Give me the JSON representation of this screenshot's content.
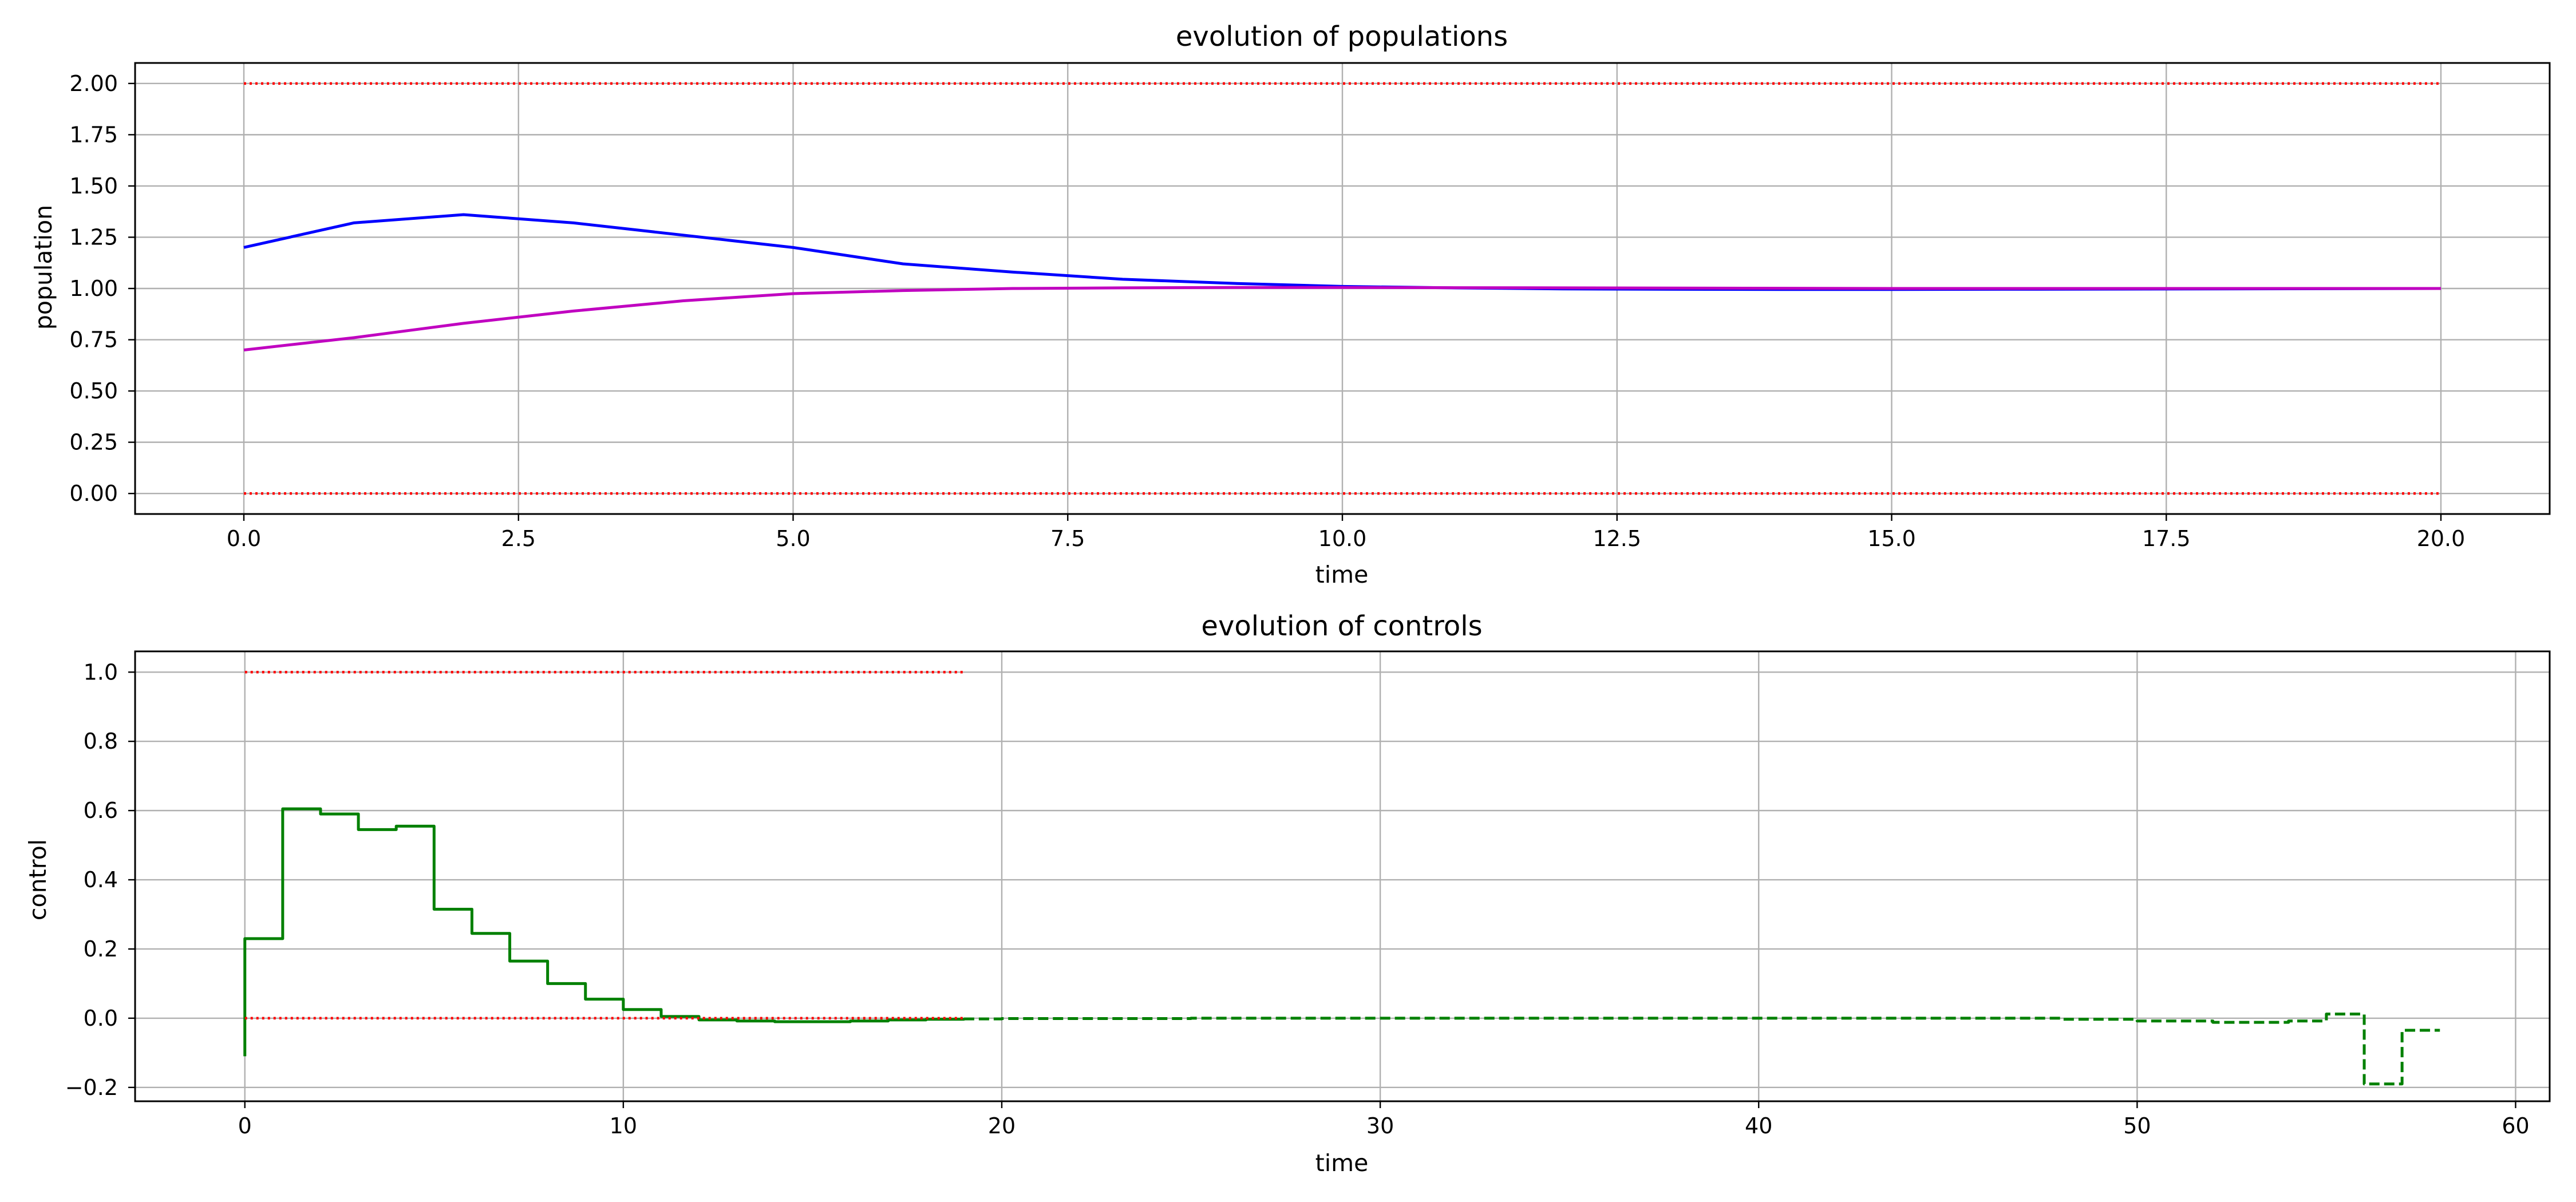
{
  "chart_data": [
    {
      "type": "line",
      "title": "evolution of populations",
      "xlabel": "time",
      "ylabel": "population",
      "xlim": [
        -0.99,
        20.99
      ],
      "ylim": [
        -0.1,
        2.1
      ],
      "grid": true,
      "xticks": [
        0,
        2.5,
        5,
        7.5,
        10,
        12.5,
        15,
        17.5,
        20
      ],
      "xtick_labels": [
        "0.0",
        "2.5",
        "5.0",
        "7.5",
        "10.0",
        "12.5",
        "15.0",
        "17.5",
        "20.0"
      ],
      "yticks": [
        0,
        0.25,
        0.5,
        0.75,
        1.0,
        1.25,
        1.5,
        1.75,
        2.0
      ],
      "ytick_labels": [
        "0.00",
        "0.25",
        "0.50",
        "0.75",
        "1.00",
        "1.25",
        "1.50",
        "1.75",
        "2.00"
      ],
      "series": [
        {
          "color": "#0000ff",
          "style": "solid",
          "x": [
            0,
            1,
            2,
            3,
            4,
            5,
            6,
            7,
            8,
            9,
            10,
            11,
            12,
            13,
            14,
            15,
            16,
            17,
            18,
            19,
            20
          ],
          "y": [
            1.2,
            1.32,
            1.36,
            1.32,
            1.26,
            1.2,
            1.12,
            1.08,
            1.045,
            1.025,
            1.01,
            1.003,
            0.998,
            0.996,
            0.995,
            0.995,
            0.996,
            0.997,
            0.998,
            0.999,
            1.0
          ]
        },
        {
          "color": "#c000c0",
          "style": "solid",
          "x": [
            0,
            1,
            2,
            3,
            4,
            5,
            6,
            7,
            8,
            9,
            10,
            11,
            12,
            13,
            14,
            15,
            16,
            17,
            18,
            19,
            20
          ],
          "y": [
            0.7,
            0.76,
            0.83,
            0.89,
            0.94,
            0.975,
            0.99,
            1.0,
            1.003,
            1.005,
            1.005,
            1.004,
            1.003,
            1.002,
            1.001,
            1.0,
            1.0,
            1.0,
            1.0,
            1.0,
            1.0
          ]
        },
        {
          "color": "#ff0000",
          "style": "dotted",
          "x": [
            0,
            20
          ],
          "y": [
            2.0,
            2.0
          ]
        },
        {
          "color": "#ff0000",
          "style": "dotted",
          "x": [
            0,
            20
          ],
          "y": [
            0.0,
            0.0
          ]
        }
      ]
    },
    {
      "type": "line",
      "title": "evolution of controls",
      "xlabel": "time",
      "ylabel": "control",
      "xlim": [
        -2.9,
        60.9
      ],
      "ylim": [
        -0.24,
        1.06
      ],
      "grid": true,
      "xticks": [
        0,
        10,
        20,
        30,
        40,
        50,
        60
      ],
      "xtick_labels": [
        "0",
        "10",
        "20",
        "30",
        "40",
        "50",
        "60"
      ],
      "yticks": [
        -0.2,
        0.0,
        0.2,
        0.4,
        0.6,
        0.8,
        1.0
      ],
      "ytick_labels": [
        "−0.2",
        "0.0",
        "0.2",
        "0.4",
        "0.6",
        "0.8",
        "1.0"
      ],
      "series": [
        {
          "color": "#008000",
          "style": "solid",
          "step": true,
          "x": [
            0,
            0,
            1,
            2,
            3,
            4,
            5,
            6,
            7,
            8,
            9,
            10,
            11,
            12,
            13,
            14,
            15,
            16,
            17,
            18,
            19
          ],
          "y": [
            -0.11,
            0.23,
            0.605,
            0.59,
            0.545,
            0.555,
            0.315,
            0.245,
            0.165,
            0.1,
            0.055,
            0.025,
            0.005,
            -0.005,
            -0.008,
            -0.01,
            -0.01,
            -0.008,
            -0.005,
            -0.003,
            -0.002
          ]
        },
        {
          "color": "#008000",
          "style": "dashed",
          "step": true,
          "x": [
            19,
            20,
            25,
            30,
            35,
            40,
            45,
            48,
            50,
            52,
            54,
            55,
            56,
            57,
            58
          ],
          "y": [
            -0.002,
            -0.001,
            0.0,
            0.0,
            0.0,
            0.0,
            0.0,
            -0.003,
            -0.008,
            -0.012,
            -0.008,
            0.012,
            -0.19,
            -0.035,
            -0.035
          ]
        },
        {
          "color": "#ff0000",
          "style": "dotted",
          "x": [
            0,
            19
          ],
          "y": [
            1.0,
            1.0
          ]
        },
        {
          "color": "#ff0000",
          "style": "dotted",
          "x": [
            0,
            19
          ],
          "y": [
            0.0,
            0.0
          ]
        }
      ]
    }
  ]
}
